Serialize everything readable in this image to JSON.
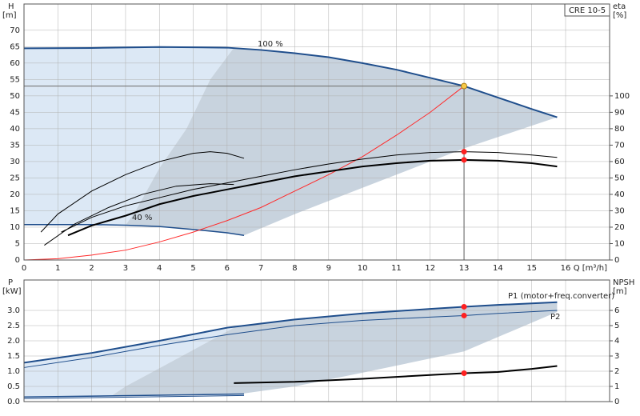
{
  "chart_data": [
    {
      "type": "line",
      "product": "CRE 10-5",
      "y_title": "H",
      "y_unit": "[m]",
      "y2_title": "eta",
      "y2_unit": "[%]",
      "x_label": "Q [m³/h]",
      "xlim": [
        0,
        17.3
      ],
      "xticks": [
        0,
        1,
        2,
        3,
        4,
        5,
        6,
        7,
        8,
        9,
        10,
        11,
        12,
        13,
        14,
        15,
        16
      ],
      "ylim": [
        0,
        78
      ],
      "yticks": [
        0,
        5,
        10,
        15,
        20,
        25,
        30,
        35,
        40,
        45,
        50,
        55,
        60,
        65,
        70
      ],
      "y2lim": [
        0,
        156
      ],
      "y2ticks": [
        0,
        10,
        20,
        30,
        40,
        50,
        60,
        70,
        80,
        90,
        100
      ],
      "grid": true,
      "annotations": [
        "100 %",
        "40 %"
      ],
      "series": [
        {
          "kind": "area",
          "color": "#dce8f5",
          "x": [
            0,
            2,
            4,
            6.2,
            5.5,
            4.8,
            4,
            3.3,
            3,
            2,
            0
          ],
          "values": [
            64.5,
            64.6,
            64.9,
            64.7,
            55,
            40,
            28,
            15,
            10.6,
            10.8,
            10.8
          ]
        },
        {
          "kind": "area",
          "color": "#c8d3de",
          "x": [
            6.2,
            7,
            8,
            9,
            10,
            11,
            12,
            13,
            14,
            15,
            15.75,
            13,
            10,
            8,
            6.5,
            5,
            4,
            3,
            3.3,
            4,
            4.8,
            5.5,
            6.2
          ],
          "values": [
            64.7,
            64,
            63,
            61.8,
            60,
            58,
            55.5,
            53,
            49.5,
            46,
            43.5,
            34,
            22,
            14,
            7.5,
            9.3,
            10.2,
            10.6,
            15,
            28,
            40,
            55,
            64.7
          ]
        },
        {
          "kind": "line",
          "color": "#1f4e8c",
          "width": 2,
          "x": [
            0,
            2,
            4,
            6,
            7,
            8,
            9,
            10,
            11,
            12,
            13,
            14,
            15,
            15.75
          ],
          "values": [
            64.5,
            64.6,
            64.9,
            64.7,
            64,
            63,
            61.8,
            60,
            58,
            55.5,
            53,
            49.5,
            46,
            43.5
          ]
        },
        {
          "kind": "line",
          "color": "#1f4e8c",
          "width": 1.5,
          "x": [
            0,
            2,
            3,
            4,
            5,
            6,
            6.5
          ],
          "values": [
            10.8,
            10.8,
            10.6,
            10.2,
            9.3,
            8.3,
            7.5
          ]
        },
        {
          "kind": "line",
          "color": "#ff2a2a",
          "width": 1,
          "x": [
            0,
            1,
            2,
            3,
            4,
            5,
            6,
            7,
            8,
            9,
            10,
            11,
            12,
            13
          ],
          "values": [
            0,
            0.4,
            1.5,
            3,
            5.5,
            8.5,
            12,
            16,
            21,
            26,
            31.5,
            38,
            45,
            53
          ]
        },
        {
          "kind": "line",
          "axis": "y2",
          "color": "#000000",
          "width": 1,
          "x": [
            0.5,
            1,
            2,
            3,
            4,
            5,
            5.5,
            6,
            6.5
          ],
          "values": [
            17,
            28,
            42,
            52,
            60,
            65,
            66,
            65,
            62
          ]
        },
        {
          "kind": "line",
          "axis": "y2",
          "color": "#000000",
          "width": 1,
          "x": [
            0.6,
            1.5,
            2.5,
            3.5,
            4.5,
            5.5,
            6.2
          ],
          "values": [
            9,
            22,
            32,
            40,
            45,
            46.5,
            46
          ]
        },
        {
          "kind": "line",
          "axis": "y2",
          "color": "#000000",
          "width": 1,
          "x": [
            1.1,
            2,
            3,
            4,
            5,
            6,
            7,
            8,
            9,
            10,
            11,
            12,
            13,
            14,
            15,
            15.75
          ],
          "values": [
            17,
            26,
            33,
            38,
            43,
            47,
            51,
            55,
            58.5,
            61.5,
            64,
            65.5,
            66,
            65.5,
            64,
            62.5
          ]
        },
        {
          "kind": "line",
          "axis": "y2",
          "color": "#000000",
          "width": 2,
          "x": [
            1.3,
            2,
            3,
            4,
            5,
            6,
            7,
            8,
            9,
            10,
            11,
            12,
            13,
            14,
            15,
            15.75
          ],
          "values": [
            15,
            21,
            27,
            34,
            39,
            43,
            47,
            51,
            54,
            57,
            59,
            60.5,
            61,
            60.5,
            59,
            57
          ]
        }
      ],
      "points": [
        {
          "x": 13,
          "y": 53,
          "color": "#f7c948"
        },
        {
          "x": 13,
          "y": 66,
          "axis": "y2",
          "color": "#ff2020"
        },
        {
          "x": 13,
          "y": 61,
          "axis": "y2",
          "color": "#ff2020"
        }
      ]
    },
    {
      "type": "line",
      "y_title": "P",
      "y_unit": "[kW]",
      "y2_title": "NPSH",
      "y2_unit": "[m]",
      "xlim": [
        0,
        17.3
      ],
      "xticks": [
        0,
        1,
        2,
        3,
        4,
        5,
        6,
        7,
        8,
        9,
        10,
        11,
        12,
        13,
        14,
        15,
        16
      ],
      "ylim": [
        0,
        4
      ],
      "yticks": [
        {
          "value": 0,
          "label": "0.0"
        },
        0.5,
        {
          "value": 1,
          "label": "1.0"
        },
        1.5,
        {
          "value": 2,
          "label": "2.0"
        },
        2.5,
        {
          "value": 3,
          "label": "3.0"
        }
      ],
      "y2lim": [
        0,
        8
      ],
      "y2ticks": [
        0,
        1,
        2,
        3,
        4,
        5,
        6
      ],
      "grid": true,
      "annotations": [
        "P1 (motor+freq.converter)",
        "P2"
      ],
      "series": [
        {
          "kind": "area",
          "color": "#dce8f5",
          "x": [
            0,
            2,
            4,
            6.2,
            5,
            4,
            3,
            2.6,
            0
          ],
          "values": [
            1.28,
            1.6,
            2,
            2.43,
            1.7,
            1.1,
            0.5,
            0.2,
            0.15
          ]
        },
        {
          "kind": "area",
          "color": "#c8d3de",
          "x": [
            6.2,
            8,
            10,
            12,
            13,
            14,
            15.75,
            15.75,
            13,
            10,
            8,
            6.5,
            2.6,
            3,
            4,
            5,
            6.2
          ],
          "values": [
            2.43,
            2.7,
            2.9,
            3.05,
            3.12,
            3.18,
            3.27,
            2.95,
            1.65,
            0.95,
            0.5,
            0.27,
            0.2,
            0.5,
            1.1,
            1.7,
            2.43
          ]
        },
        {
          "kind": "line",
          "color": "#1f4e8c",
          "width": 2,
          "x": [
            0,
            2,
            4,
            6,
            8,
            10,
            12,
            13,
            14,
            15.75
          ],
          "values": [
            1.28,
            1.6,
            2,
            2.43,
            2.7,
            2.9,
            3.05,
            3.12,
            3.18,
            3.27
          ]
        },
        {
          "kind": "line",
          "color": "#1f4e8c",
          "width": 1,
          "x": [
            0,
            2,
            4,
            6,
            8,
            10,
            12,
            13,
            14,
            15.75
          ],
          "values": [
            1.12,
            1.45,
            1.85,
            2.2,
            2.5,
            2.67,
            2.78,
            2.83,
            2.9,
            3
          ]
        },
        {
          "kind": "line",
          "color": "#1f4e8c",
          "width": 1.5,
          "x": [
            0,
            6.5
          ],
          "values": [
            0.15,
            0.25
          ]
        },
        {
          "kind": "line",
          "color": "#1f4e8c",
          "width": 1,
          "x": [
            0,
            6.5
          ],
          "values": [
            0.1,
            0.2
          ]
        },
        {
          "kind": "line",
          "axis": "y2",
          "color": "#000000",
          "width": 2,
          "x": [
            6.2,
            8,
            10,
            12,
            13,
            14,
            15,
            15.75
          ],
          "values": [
            1.22,
            1.3,
            1.5,
            1.75,
            1.87,
            1.95,
            2.15,
            2.34
          ]
        }
      ],
      "points": [
        {
          "x": 13,
          "y": 3.12,
          "color": "#ff2020"
        },
        {
          "x": 13,
          "y": 2.83,
          "color": "#ff2020"
        },
        {
          "x": 13,
          "y": 1.87,
          "axis": "y2",
          "color": "#ff2020"
        }
      ]
    }
  ]
}
